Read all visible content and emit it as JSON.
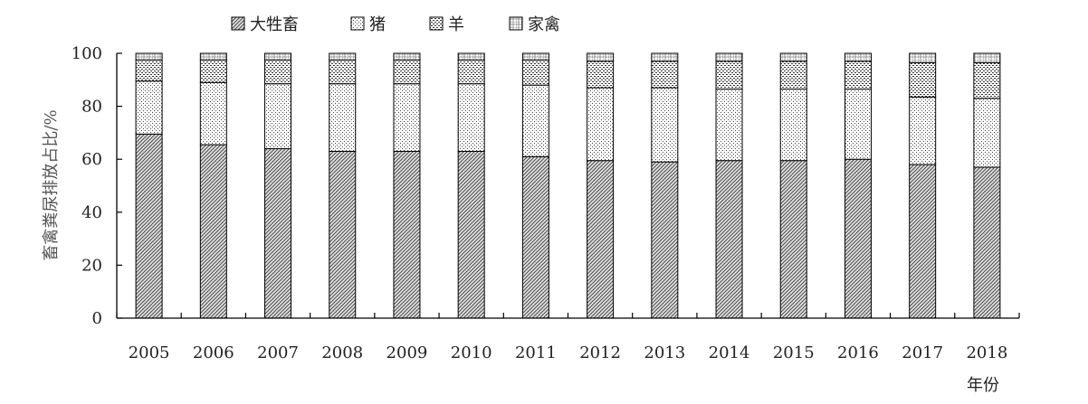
{
  "chart_data": {
    "type": "bar",
    "stacked": true,
    "categories": [
      "2005",
      "2006",
      "2007",
      "2008",
      "2009",
      "2010",
      "2011",
      "2012",
      "2013",
      "2014",
      "2015",
      "2016",
      "2017",
      "2018"
    ],
    "series": [
      {
        "name": "大牲畜",
        "values": [
          69.5,
          65.5,
          64,
          63,
          63,
          63,
          61,
          59.5,
          59,
          59.5,
          59.5,
          60,
          58,
          57
        ]
      },
      {
        "name": "猪",
        "values": [
          20,
          23.5,
          24.5,
          25.5,
          25.5,
          25.5,
          27,
          27.5,
          28,
          27,
          27,
          26.5,
          25.5,
          26
        ]
      },
      {
        "name": "羊",
        "values": [
          8,
          8.5,
          9,
          9,
          9,
          9,
          9.5,
          10,
          10,
          10.5,
          10.5,
          10.5,
          13,
          13.5
        ]
      },
      {
        "name": "家禽",
        "values": [
          2.5,
          2.5,
          2.5,
          2.5,
          2.5,
          2.5,
          2.5,
          3,
          3,
          3,
          3,
          3,
          3.5,
          3.5
        ]
      }
    ],
    "ylabel": "畜禽粪尿排放占比/%",
    "xlabel": "年份",
    "ylim": [
      0,
      100
    ],
    "yticks": [
      0,
      20,
      40,
      60,
      80,
      100
    ],
    "legend_position": "top",
    "grid": false
  }
}
